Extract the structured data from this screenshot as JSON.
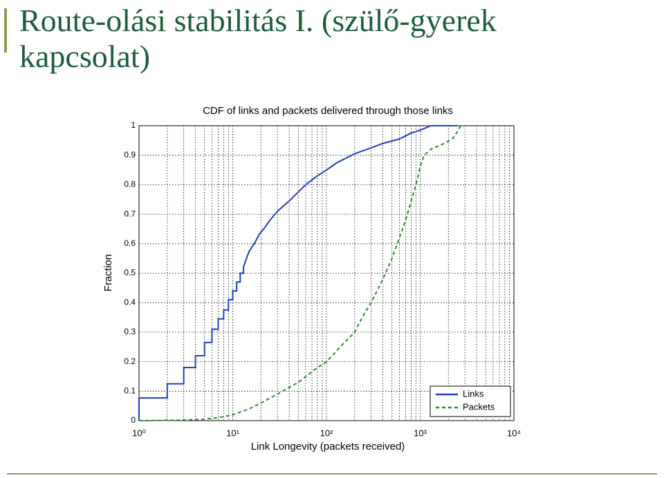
{
  "title": "Route-olási stabilitás I. (szülő-gyerek kapcsolat)",
  "chart_data": {
    "type": "line",
    "title": "CDF of links and packets delivered through those links",
    "x_label": "Link Longevity (packets received)",
    "y_label": "Fraction",
    "xscale": "log",
    "xlim": [
      1,
      10000
    ],
    "ylim": [
      0,
      1
    ],
    "xticks": [
      {
        "value": 1,
        "label": "10⁰"
      },
      {
        "value": 10,
        "label": "10¹"
      },
      {
        "value": 100,
        "label": "10²"
      },
      {
        "value": 1000,
        "label": "10³"
      },
      {
        "value": 10000,
        "label": "10⁴"
      }
    ],
    "xminorticks": [
      2,
      3,
      4,
      5,
      6,
      7,
      8,
      9,
      20,
      30,
      40,
      50,
      60,
      70,
      80,
      90,
      200,
      300,
      400,
      500,
      600,
      700,
      800,
      900,
      2000,
      3000,
      4000,
      5000,
      6000,
      7000,
      8000,
      9000
    ],
    "yticks": [
      0,
      0.1,
      0.2,
      0.3,
      0.4,
      0.5,
      0.6,
      0.7,
      0.8,
      0.9,
      1
    ],
    "grid": true,
    "legend": "lower right",
    "series": [
      {
        "name": "Links",
        "color": "#1f3fbf",
        "dash": false,
        "x": [
          1,
          1,
          2,
          2,
          3,
          3,
          4,
          4,
          5,
          5,
          6,
          6,
          7,
          7,
          8,
          8,
          9,
          9,
          10,
          10,
          11,
          11,
          12,
          12,
          13,
          13,
          14,
          15,
          17,
          19,
          22,
          25,
          30,
          40,
          50,
          60,
          80,
          100,
          130,
          200,
          300,
          400,
          600,
          800,
          1000,
          1300,
          2500
        ],
        "values": [
          0,
          0.077,
          0.077,
          0.125,
          0.125,
          0.18,
          0.18,
          0.22,
          0.22,
          0.265,
          0.265,
          0.31,
          0.31,
          0.345,
          0.345,
          0.375,
          0.375,
          0.41,
          0.41,
          0.44,
          0.44,
          0.47,
          0.47,
          0.5,
          0.5,
          0.52,
          0.55,
          0.575,
          0.6,
          0.63,
          0.655,
          0.68,
          0.71,
          0.745,
          0.775,
          0.8,
          0.83,
          0.85,
          0.875,
          0.905,
          0.925,
          0.94,
          0.955,
          0.975,
          0.985,
          1,
          1
        ]
      },
      {
        "name": "Packets",
        "color": "#2a8a2a",
        "dash": true,
        "x": [
          1,
          3,
          5,
          7,
          10,
          15,
          20,
          30,
          50,
          80,
          100,
          150,
          200,
          250,
          300,
          400,
          500,
          700,
          900,
          1000,
          1100,
          1300,
          1800,
          2200,
          2500,
          2700
        ],
        "values": [
          0,
          0.002,
          0.005,
          0.01,
          0.02,
          0.04,
          0.06,
          0.09,
          0.13,
          0.18,
          0.2,
          0.26,
          0.3,
          0.36,
          0.4,
          0.48,
          0.55,
          0.68,
          0.8,
          0.86,
          0.9,
          0.92,
          0.94,
          0.955,
          0.98,
          1
        ]
      }
    ]
  }
}
